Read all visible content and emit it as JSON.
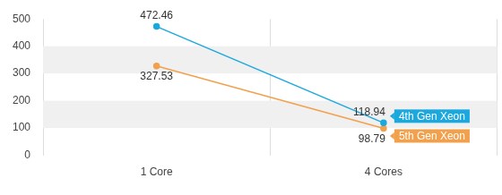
{
  "chart_data": {
    "type": "line",
    "categories": [
      "1 Core",
      "4 Cores"
    ],
    "series": [
      {
        "name": "4th Gen Xeon",
        "color": "#1ba8df",
        "values": [
          472.46,
          118.94
        ]
      },
      {
        "name": "5th Gen Xeon",
        "color": "#f2a04c",
        "values": [
          327.53,
          98.79
        ]
      }
    ],
    "ylim": [
      0,
      500
    ],
    "yticks": [
      0,
      100,
      200,
      300,
      400,
      500
    ],
    "grid": true,
    "data_labels": true,
    "marker": "circle"
  }
}
